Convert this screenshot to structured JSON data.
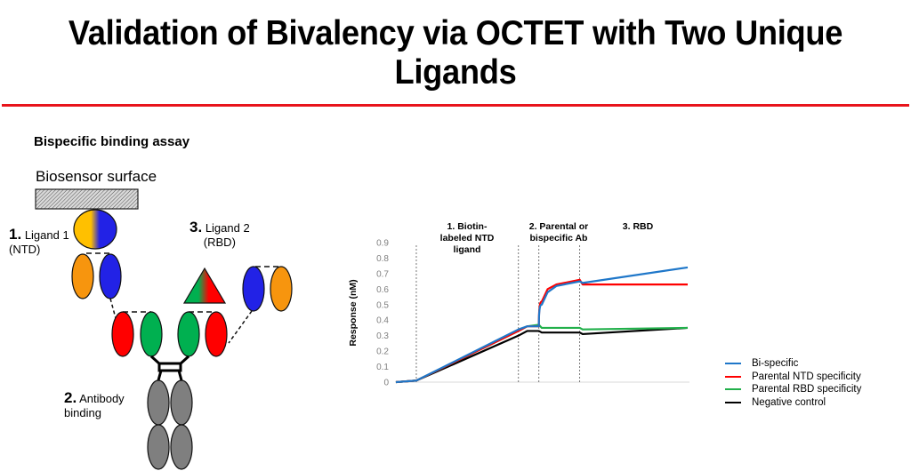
{
  "slide": {
    "title": "Validation of Bivalency via OCTET with Two Unique Ligands",
    "accent_rule_color": "#e8141b"
  },
  "diagram": {
    "subtitle": "Bispecific binding assay",
    "surface_label": "Biosensor surface",
    "step1": {
      "num": "1.",
      "text": "Ligand 1",
      "sub": "(NTD)"
    },
    "step2": {
      "num": "2.",
      "text": "Antibody",
      "sub": "binding"
    },
    "step3": {
      "num": "3.",
      "text": "Ligand 2",
      "sub": "(RBD)"
    },
    "colors": {
      "orange": "#f7950e",
      "blue": "#2222e6",
      "red": "#ff0000",
      "green": "#00b050",
      "grey": "#7f7f7f",
      "yellow": "#ffc000"
    }
  },
  "chart_data": {
    "type": "line",
    "title": "",
    "xlabel": "",
    "ylabel": "Response (nM)",
    "ylim": [
      0,
      0.9
    ],
    "yticks": [
      "0",
      "0.1",
      "0.2",
      "0.3",
      "0.4",
      "0.5",
      "0.6",
      "0.7",
      "0.8",
      "0.9"
    ],
    "grid": false,
    "legend_position": "right",
    "phase_labels": [
      {
        "text": "1. Biotin-labeled NTD ligand",
        "lines": [
          "1. Biotin-",
          "labeled NTD",
          "ligand"
        ]
      },
      {
        "text": "2. Parental or bispecific Ab",
        "lines": [
          "2. Parental or",
          "bispecific Ab"
        ]
      },
      {
        "text": "3. RBD",
        "lines": [
          "3. RBD"
        ]
      }
    ],
    "phase_boundaries_relative_x": [
      0.07,
      0.42,
      0.49,
      0.63
    ],
    "x": [
      0.0,
      0.07,
      0.42,
      0.45,
      0.49,
      0.5,
      0.52,
      0.55,
      0.63,
      0.64,
      1.0
    ],
    "series": [
      {
        "name": "Bi-specific",
        "color": "#1f77c9",
        "values": [
          0.0,
          0.01,
          0.34,
          0.36,
          0.36,
          0.5,
          0.58,
          0.62,
          0.65,
          0.64,
          0.74
        ]
      },
      {
        "name": "Parental NTD specificity",
        "color": "#ff0000",
        "values": [
          0.0,
          0.01,
          0.33,
          0.36,
          0.36,
          0.52,
          0.6,
          0.63,
          0.66,
          0.63,
          0.63
        ]
      },
      {
        "name": "Parental RBD specificity",
        "color": "#22b04b",
        "values": [
          0.0,
          0.01,
          0.33,
          0.36,
          0.37,
          0.35,
          0.35,
          0.35,
          0.35,
          0.34,
          0.35
        ]
      },
      {
        "name": "Negative control",
        "color": "#000000",
        "values": [
          0.0,
          0.01,
          0.3,
          0.33,
          0.33,
          0.32,
          0.32,
          0.32,
          0.32,
          0.31,
          0.35
        ]
      }
    ]
  }
}
